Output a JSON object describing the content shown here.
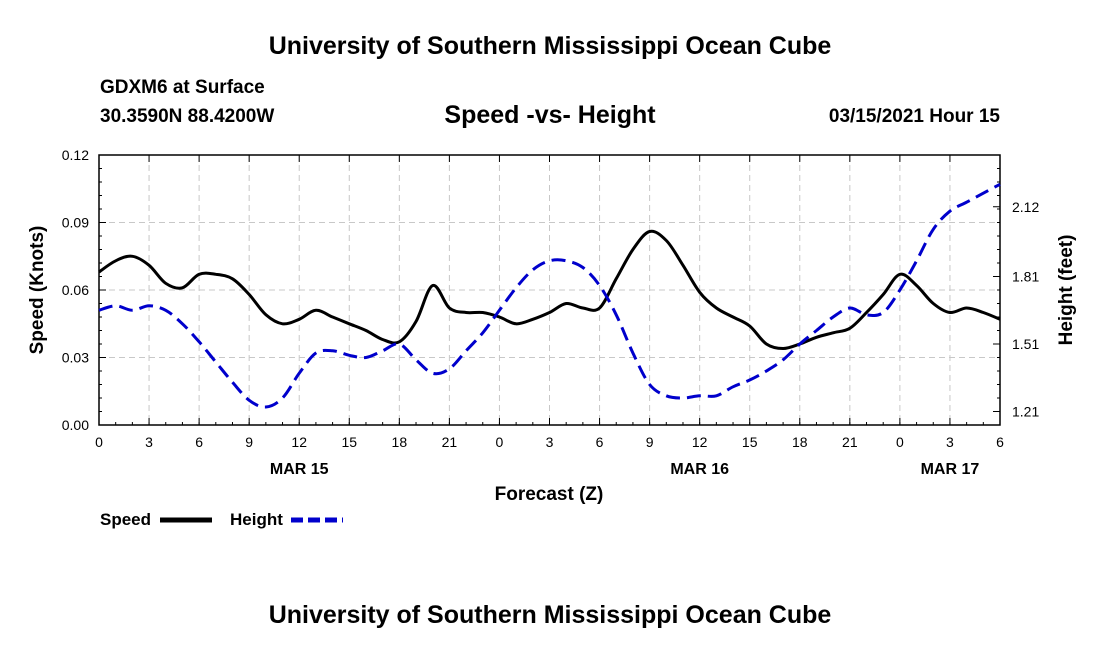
{
  "header": {
    "top_title": "University of Southern Mississippi Ocean Cube",
    "station": "GDXM6 at Surface",
    "location": "30.3590N 88.4200W",
    "datetime": "03/15/2021 Hour 15"
  },
  "footer": {
    "bottom_title": "University of Southern Mississippi Ocean Cube"
  },
  "chart_data": {
    "type": "line",
    "title": "Speed -vs- Height",
    "xlabel": "Forecast (Z)",
    "ylabel": "Speed (Knots)",
    "y2label": "Height (feet)",
    "x_hours": [
      0,
      1,
      2,
      3,
      4,
      5,
      6,
      7,
      8,
      9,
      10,
      11,
      12,
      13,
      14,
      15,
      16,
      17,
      18,
      19,
      20,
      21,
      22,
      23,
      24,
      25,
      26,
      27,
      28,
      29,
      30,
      31,
      32,
      33,
      34,
      35,
      36,
      37,
      38,
      39,
      40,
      41,
      42,
      43,
      44,
      45,
      46,
      47,
      48,
      49,
      50,
      51,
      52,
      53,
      54
    ],
    "xlim": [
      0,
      54
    ],
    "ylim": [
      0,
      0.12
    ],
    "y2lim": [
      1.15,
      2.35
    ],
    "x_ticks": [
      {
        "h": 0,
        "label": "0"
      },
      {
        "h": 3,
        "label": "3"
      },
      {
        "h": 6,
        "label": "6"
      },
      {
        "h": 9,
        "label": "9"
      },
      {
        "h": 12,
        "label": "12"
      },
      {
        "h": 15,
        "label": "15"
      },
      {
        "h": 18,
        "label": "18"
      },
      {
        "h": 21,
        "label": "21"
      },
      {
        "h": 24,
        "label": "0"
      },
      {
        "h": 27,
        "label": "3"
      },
      {
        "h": 30,
        "label": "6"
      },
      {
        "h": 33,
        "label": "9"
      },
      {
        "h": 36,
        "label": "12"
      },
      {
        "h": 39,
        "label": "15"
      },
      {
        "h": 42,
        "label": "18"
      },
      {
        "h": 45,
        "label": "21"
      },
      {
        "h": 48,
        "label": "0"
      },
      {
        "h": 51,
        "label": "3"
      },
      {
        "h": 54,
        "label": "6"
      }
    ],
    "date_labels": [
      {
        "h": 12,
        "label": "MAR 15"
      },
      {
        "h": 36,
        "label": "MAR 16"
      },
      {
        "h": 51,
        "label": "MAR 17"
      }
    ],
    "y_ticks": [
      {
        "v": 0.0,
        "label": "0.00"
      },
      {
        "v": 0.03,
        "label": "0.03"
      },
      {
        "v": 0.06,
        "label": "0.06"
      },
      {
        "v": 0.09,
        "label": "0.09"
      },
      {
        "v": 0.12,
        "label": "0.12"
      }
    ],
    "y2_ticks": [
      {
        "v": 1.21,
        "label": "1.21"
      },
      {
        "v": 1.51,
        "label": "1.51"
      },
      {
        "v": 1.81,
        "label": "1.81"
      },
      {
        "v": 2.12,
        "label": "2.12"
      }
    ],
    "series": [
      {
        "name": "Speed",
        "axis": "left",
        "color": "#000000",
        "dash": "solid",
        "values": [
          0.068,
          0.073,
          0.075,
          0.071,
          0.063,
          0.061,
          0.067,
          0.067,
          0.065,
          0.058,
          0.049,
          0.045,
          0.047,
          0.051,
          0.048,
          0.045,
          0.042,
          0.038,
          0.037,
          0.046,
          0.062,
          0.052,
          0.05,
          0.05,
          0.048,
          0.045,
          0.047,
          0.05,
          0.054,
          0.052,
          0.052,
          0.065,
          0.078,
          0.086,
          0.082,
          0.071,
          0.059,
          0.052,
          0.048,
          0.044,
          0.036,
          0.034,
          0.036,
          0.039,
          0.041,
          0.043,
          0.05,
          0.058,
          0.067,
          0.062,
          0.054,
          0.05,
          0.052,
          0.05,
          0.047
        ]
      },
      {
        "name": "Height",
        "axis": "right",
        "color": "#0000cc",
        "dash": "dashed",
        "values": [
          1.66,
          1.68,
          1.66,
          1.68,
          1.66,
          1.6,
          1.52,
          1.43,
          1.34,
          1.26,
          1.23,
          1.27,
          1.38,
          1.47,
          1.48,
          1.46,
          1.45,
          1.48,
          1.51,
          1.44,
          1.38,
          1.4,
          1.48,
          1.56,
          1.66,
          1.76,
          1.84,
          1.88,
          1.88,
          1.85,
          1.77,
          1.64,
          1.47,
          1.33,
          1.28,
          1.27,
          1.28,
          1.28,
          1.32,
          1.35,
          1.39,
          1.44,
          1.51,
          1.57,
          1.63,
          1.67,
          1.64,
          1.65,
          1.75,
          1.88,
          2.02,
          2.1,
          2.14,
          2.18,
          2.22
        ]
      }
    ],
    "legend": [
      {
        "label": "Speed",
        "color": "#000000",
        "dash": "solid"
      },
      {
        "label": "Height",
        "color": "#0000cc",
        "dash": "dashed"
      }
    ]
  }
}
